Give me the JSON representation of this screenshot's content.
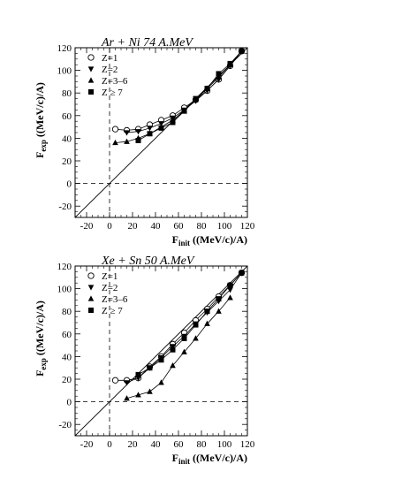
{
  "chart_data": [
    {
      "type": "scatter",
      "title": "Ar + Ni 74 A.MeV",
      "ylabel": "F",
      "ylabel_sub": "exp",
      "ylabel_units": " ((MeV/c)/A)",
      "xlabel": "F",
      "xlabel_sub": "init",
      "xlabel_units": " ((MeV/c)/A)",
      "xlim": [
        -30,
        120
      ],
      "ylim": [
        -30,
        120
      ],
      "xticks": [
        -20,
        0,
        20,
        40,
        60,
        80,
        100,
        120
      ],
      "yticks": [
        -20,
        0,
        20,
        40,
        60,
        80,
        100,
        120
      ],
      "grid": false,
      "legend_position": "top-left",
      "reference_lines": [
        "diagonal y=x",
        "dashed x=0",
        "dashed y=0"
      ],
      "series": [
        {
          "name": "Z=1",
          "marker": "circle-open",
          "x": [
            5,
            15,
            25,
            35,
            45,
            55,
            65,
            75,
            85,
            95,
            105,
            115
          ],
          "y": [
            48,
            47,
            48,
            52,
            56,
            60,
            67,
            74,
            82,
            92,
            104,
            117
          ]
        },
        {
          "name": "Z=2",
          "marker": "triangle-down",
          "x": [
            15,
            25,
            35,
            45,
            55,
            65,
            75,
            85,
            95,
            105,
            115
          ],
          "y": [
            45,
            46,
            49,
            53,
            58,
            65,
            73,
            82,
            92,
            104,
            117
          ]
        },
        {
          "name": "Z=3–6",
          "marker": "triangle-up",
          "x": [
            5,
            15,
            25,
            35,
            45,
            55,
            65,
            75,
            85,
            95,
            105,
            115
          ],
          "y": [
            36,
            37,
            40,
            44,
            50,
            56,
            64,
            74,
            84,
            94,
            105,
            117
          ]
        },
        {
          "name": "Z ≥ 7",
          "marker": "square",
          "x": [
            25,
            35,
            45,
            55,
            65,
            75,
            85,
            95,
            105,
            115
          ],
          "y": [
            38,
            44,
            49,
            54,
            64,
            75,
            84,
            97,
            106,
            117
          ]
        }
      ]
    },
    {
      "type": "scatter",
      "title": "Xe + Sn 50 A.MeV",
      "ylabel": "F",
      "ylabel_sub": "exp",
      "ylabel_units": " ((MeV/c)/A)",
      "xlabel": "F",
      "xlabel_sub": "init",
      "xlabel_units": " ((MeV/c)/A)",
      "xlim": [
        -30,
        120
      ],
      "ylim": [
        -30,
        120
      ],
      "xticks": [
        -20,
        0,
        20,
        40,
        60,
        80,
        100,
        120
      ],
      "yticks": [
        -20,
        0,
        20,
        40,
        60,
        80,
        100,
        120
      ],
      "grid": false,
      "legend_position": "top-left",
      "reference_lines": [
        "diagonal y=x",
        "dashed x=0",
        "dashed y=0"
      ],
      "series": [
        {
          "name": "Z=1",
          "marker": "circle-open",
          "x": [
            5,
            15,
            25,
            35,
            45,
            55,
            65,
            75,
            85,
            95,
            105,
            115
          ],
          "y": [
            19,
            19,
            21,
            31,
            40,
            51,
            61,
            72,
            82,
            93,
            103,
            114
          ]
        },
        {
          "name": "Z=2",
          "marker": "triangle-down",
          "x": [
            15,
            25,
            35,
            45,
            55,
            65,
            75,
            85,
            95,
            105,
            115
          ],
          "y": [
            17,
            21,
            30,
            39,
            49,
            58,
            69,
            79,
            89,
            99,
            114
          ]
        },
        {
          "name": "Z=3–6",
          "marker": "triangle-up",
          "x": [
            15,
            25,
            35,
            45,
            55,
            65,
            75,
            85,
            95,
            105
          ],
          "y": [
            3,
            6,
            9,
            17,
            32,
            44,
            56,
            69,
            80,
            92
          ]
        },
        {
          "name": "Z ≥ 7",
          "marker": "square",
          "x": [
            25,
            35,
            45,
            55,
            65,
            75,
            85,
            95,
            105,
            115
          ],
          "y": [
            24,
            30,
            37,
            46,
            56,
            68,
            80,
            91,
            103,
            114
          ]
        }
      ]
    }
  ]
}
